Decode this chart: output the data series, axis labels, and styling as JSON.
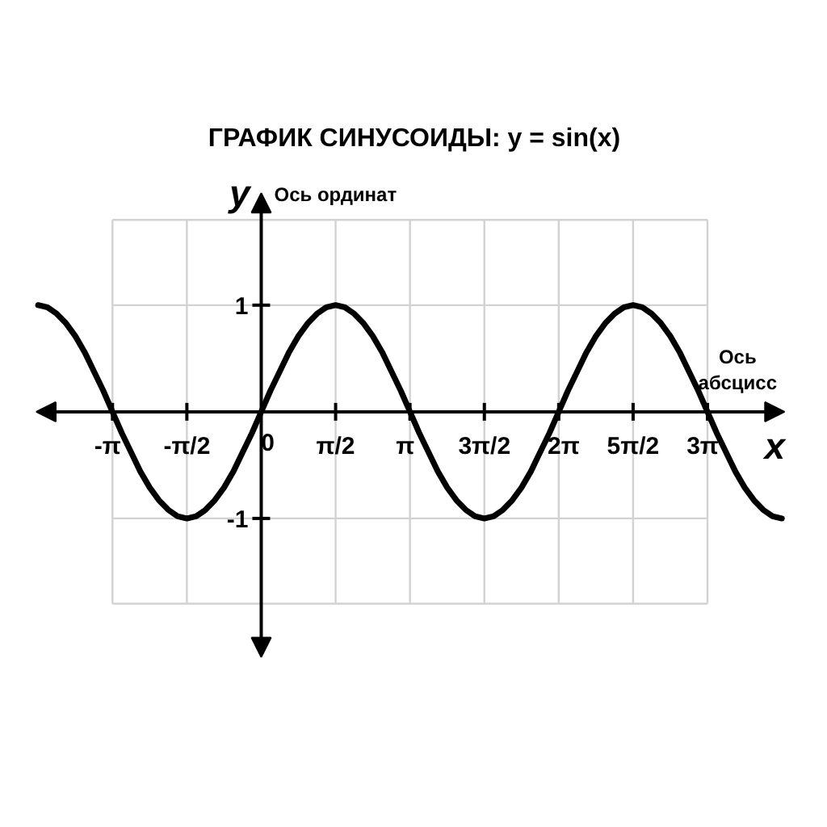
{
  "chart_data": {
    "type": "line",
    "title": "ГРАФИК СИНУСОИДЫ: y = sin(x)",
    "xlabel": "Ось абсцисс",
    "ylabel": "Ось ординат",
    "annotations": [
      "y",
      "x"
    ],
    "xlim": [
      -4.75,
      11.05
    ],
    "ylim": [
      -2.3,
      2.05
    ],
    "xticks": [
      {
        "value": -3.1416,
        "label": "-π"
      },
      {
        "value": -1.5708,
        "label": "-π/2"
      },
      {
        "value": 0,
        "label": "0"
      },
      {
        "value": 1.5708,
        "label": "π/2"
      },
      {
        "value": 3.1416,
        "label": "π"
      },
      {
        "value": 4.7124,
        "label": "3π/2"
      },
      {
        "value": 6.2832,
        "label": "2π"
      },
      {
        "value": 7.854,
        "label": "5π/2"
      },
      {
        "value": 9.4248,
        "label": "3π"
      }
    ],
    "yticks": [
      {
        "value": -1.8,
        "label": null
      },
      -1,
      1,
      {
        "value": 1.8,
        "label": null
      }
    ],
    "grid": true,
    "line_style": "solid",
    "series": [
      {
        "color": "#000000",
        "x": [
          -4.712,
          -4.516,
          -4.32,
          -4.123,
          -3.927,
          -3.731,
          -3.534,
          -3.338,
          -3.142,
          -2.945,
          -2.749,
          -2.553,
          -2.356,
          -2.16,
          -1.963,
          -1.767,
          -1.571,
          -1.374,
          -1.178,
          -0.982,
          -0.785,
          -0.589,
          -0.393,
          -0.196,
          0,
          0.196,
          0.393,
          0.589,
          0.785,
          0.982,
          1.178,
          1.374,
          1.571,
          1.767,
          1.963,
          2.16,
          2.356,
          2.553,
          2.749,
          2.945,
          3.142,
          3.338,
          3.534,
          3.731,
          3.927,
          4.123,
          4.32,
          4.516,
          4.712,
          4.909,
          5.105,
          5.301,
          5.498,
          5.694,
          5.89,
          6.087,
          6.283,
          6.48,
          6.676,
          6.872,
          7.069,
          7.265,
          7.461,
          7.658,
          7.854,
          8.05,
          8.247,
          8.443,
          8.639,
          8.836,
          9.032,
          9.228,
          9.425,
          9.621,
          9.817,
          10.014,
          10.21,
          10.407,
          10.603,
          10.799,
          10.996
        ],
        "values": [
          1,
          0.98,
          0.92,
          0.83,
          0.71,
          0.56,
          0.38,
          0.2,
          0,
          -0.2,
          -0.38,
          -0.56,
          -0.71,
          -0.83,
          -0.92,
          -0.98,
          -1,
          -0.98,
          -0.92,
          -0.83,
          -0.71,
          -0.56,
          -0.38,
          -0.2,
          0,
          0.2,
          0.38,
          0.56,
          0.71,
          0.83,
          0.92,
          0.98,
          1,
          0.98,
          0.92,
          0.83,
          0.71,
          0.56,
          0.38,
          0.2,
          0,
          -0.2,
          -0.38,
          -0.56,
          -0.71,
          -0.83,
          -0.92,
          -0.98,
          -1,
          -0.98,
          -0.92,
          -0.83,
          -0.71,
          -0.56,
          -0.38,
          -0.2,
          0,
          0.2,
          0.38,
          0.56,
          0.71,
          0.83,
          0.92,
          0.98,
          1,
          0.98,
          0.92,
          0.83,
          0.71,
          0.56,
          0.38,
          0.2,
          0,
          -0.2,
          -0.38,
          -0.56,
          -0.71,
          -0.83,
          -0.92,
          -0.98,
          -1
        ]
      }
    ]
  }
}
